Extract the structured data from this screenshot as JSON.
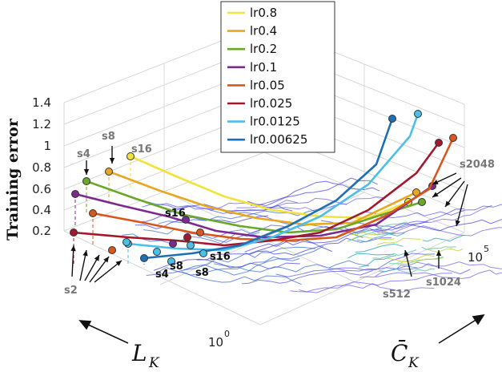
{
  "chart_data": {
    "type": "line",
    "zlabel": "Training error",
    "xlabel_main": "L",
    "xlabel_sub": "K",
    "ylabel_main": "C̄",
    "ylabel_sub": "K",
    "z_ticks": [
      "0.2",
      "0.4",
      "0.6",
      "0.8",
      "1",
      "1.2",
      "1.4"
    ],
    "x_tick_label": "10",
    "x_tick_exp": "0",
    "y_tick_label": "10",
    "y_tick_exp": "5",
    "legend_position": "top-center",
    "series": [
      {
        "name": "lr0.8",
        "color": "#f2e23a"
      },
      {
        "name": "lr0.4",
        "color": "#e6a81e"
      },
      {
        "name": "lr0.2",
        "color": "#6aa82a"
      },
      {
        "name": "lr0.1",
        "color": "#7b2a8e"
      },
      {
        "name": "lr0.05",
        "color": "#d9561d"
      },
      {
        "name": "lr0.025",
        "color": "#a3182c"
      },
      {
        "name": "lr0.0125",
        "color": "#4cbfe8"
      },
      {
        "name": "lr0.00625",
        "color": "#1f6fb5"
      }
    ],
    "annotations_gray": [
      "s2",
      "s4",
      "s8",
      "s16",
      "s512",
      "s1024",
      "s2048"
    ],
    "annotations_black": [
      "s16",
      "s4",
      "s8",
      "s8",
      "s16"
    ]
  }
}
